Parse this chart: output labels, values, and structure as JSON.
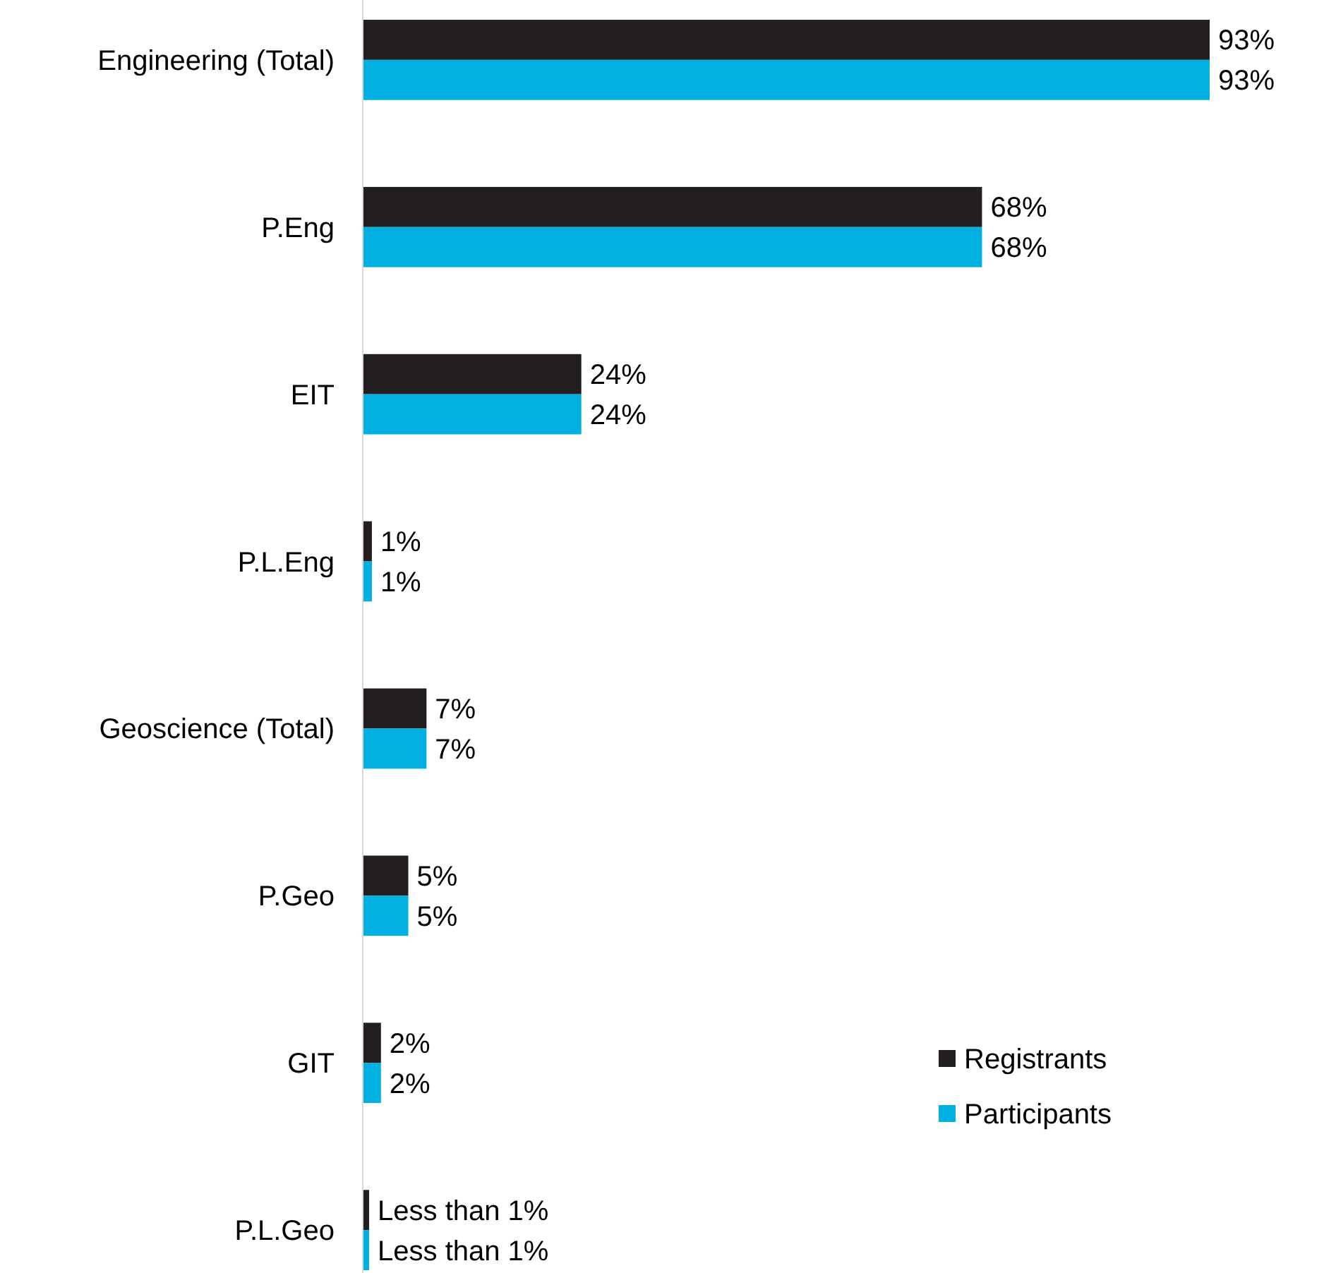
{
  "chart_data": {
    "type": "bar",
    "orientation": "horizontal",
    "categories": [
      "Engineering (Total)",
      "P.Eng",
      "EIT",
      "P.L.Eng",
      "Geoscience (Total)",
      "P.Geo",
      "GIT",
      "P.L.Geo"
    ],
    "series": [
      {
        "name": "Registrants",
        "color": "#231f20",
        "values": [
          93,
          68,
          24,
          1,
          7,
          5,
          2,
          0.7
        ],
        "value_labels": [
          "93%",
          "68%",
          "24%",
          "1%",
          "7%",
          "5%",
          "2%",
          "Less than 1%"
        ]
      },
      {
        "name": "Participants",
        "color": "#00b0e0",
        "values": [
          93,
          68,
          24,
          1,
          7,
          5,
          2,
          0.7
        ],
        "value_labels": [
          "93%",
          "68%",
          "24%",
          "1%",
          "7%",
          "5%",
          "2%",
          "Less than 1%"
        ]
      }
    ],
    "legend": "bottom right"
  }
}
